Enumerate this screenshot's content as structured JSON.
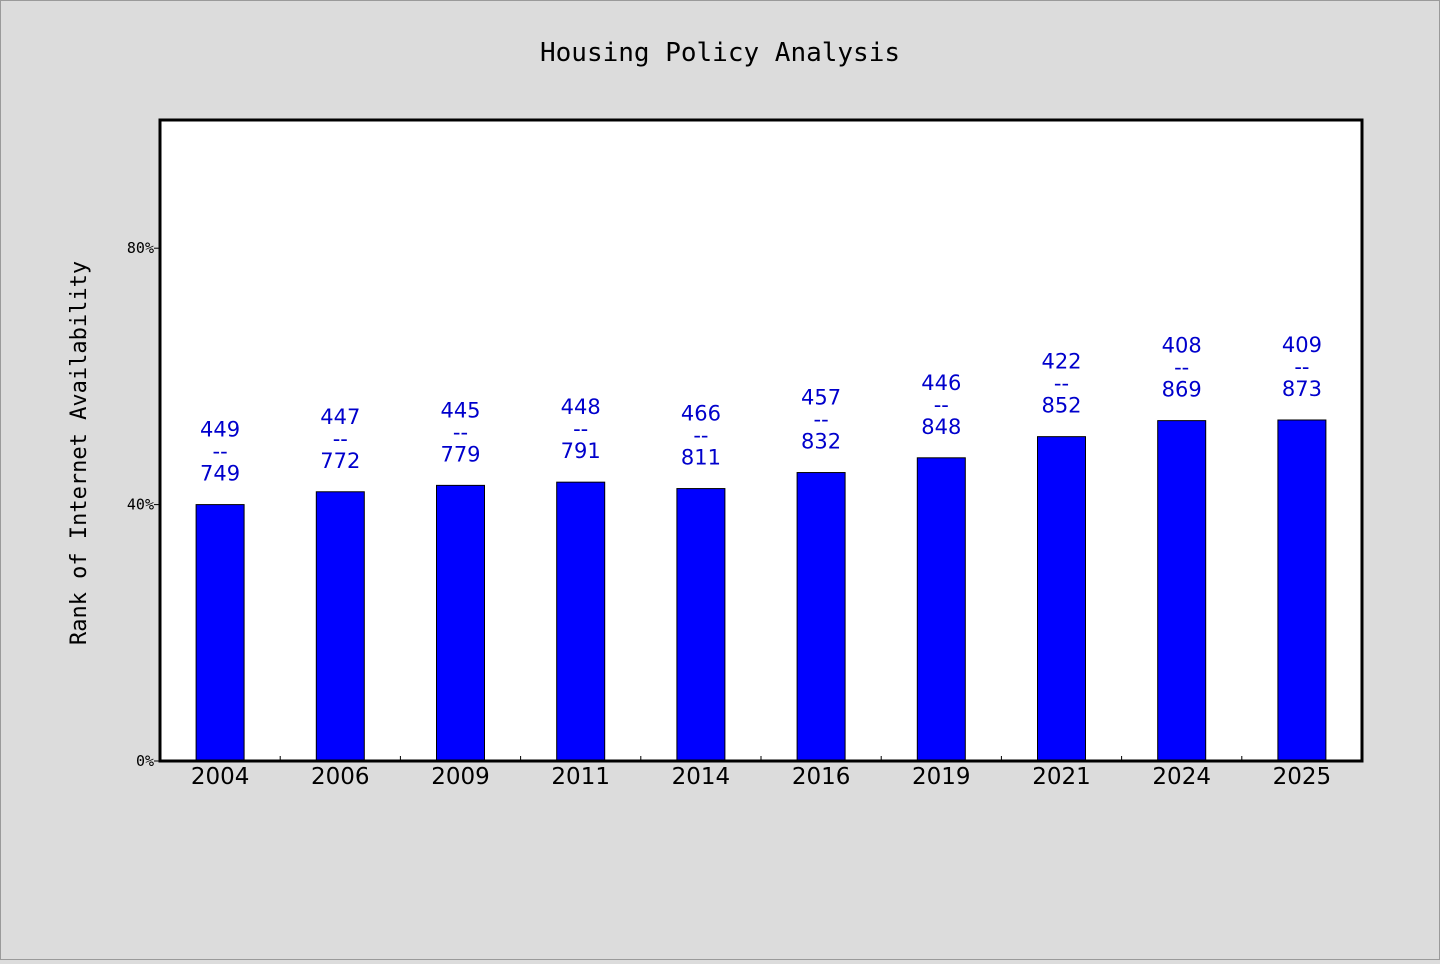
{
  "chart_data": {
    "type": "bar",
    "title": "Housing Policy Analysis",
    "xlabel": "",
    "ylabel": "Rank of Internet Availability",
    "categories": [
      "2004",
      "2006",
      "2009",
      "2011",
      "2014",
      "2016",
      "2019",
      "2021",
      "2024",
      "2025"
    ],
    "values": [
      40.0,
      42.0,
      43.0,
      43.5,
      42.5,
      45.0,
      47.3,
      50.6,
      53.1,
      53.2
    ],
    "value_unit": "%",
    "data_labels": [
      {
        "top": "449",
        "sep": "--",
        "bottom": "749"
      },
      {
        "top": "447",
        "sep": "--",
        "bottom": "772"
      },
      {
        "top": "445",
        "sep": "--",
        "bottom": "779"
      },
      {
        "top": "448",
        "sep": "--",
        "bottom": "791"
      },
      {
        "top": "466",
        "sep": "--",
        "bottom": "811"
      },
      {
        "top": "457",
        "sep": "--",
        "bottom": "832"
      },
      {
        "top": "446",
        "sep": "--",
        "bottom": "848"
      },
      {
        "top": "422",
        "sep": "--",
        "bottom": "852"
      },
      {
        "top": "408",
        "sep": "--",
        "bottom": "869"
      },
      {
        "top": "409",
        "sep": "--",
        "bottom": "873"
      }
    ],
    "yticks": [
      0,
      40,
      80
    ],
    "ytick_labels": [
      "0%",
      "40%",
      "80%"
    ],
    "ylim": [
      0,
      100
    ],
    "grid": false,
    "legend": "none",
    "colors": {
      "bar_fill": "#0000ff",
      "bar_edge": "#000000",
      "label_color": "#0000cc",
      "plot_background": "#ffffff",
      "page_background": "#dcdcdc"
    }
  }
}
